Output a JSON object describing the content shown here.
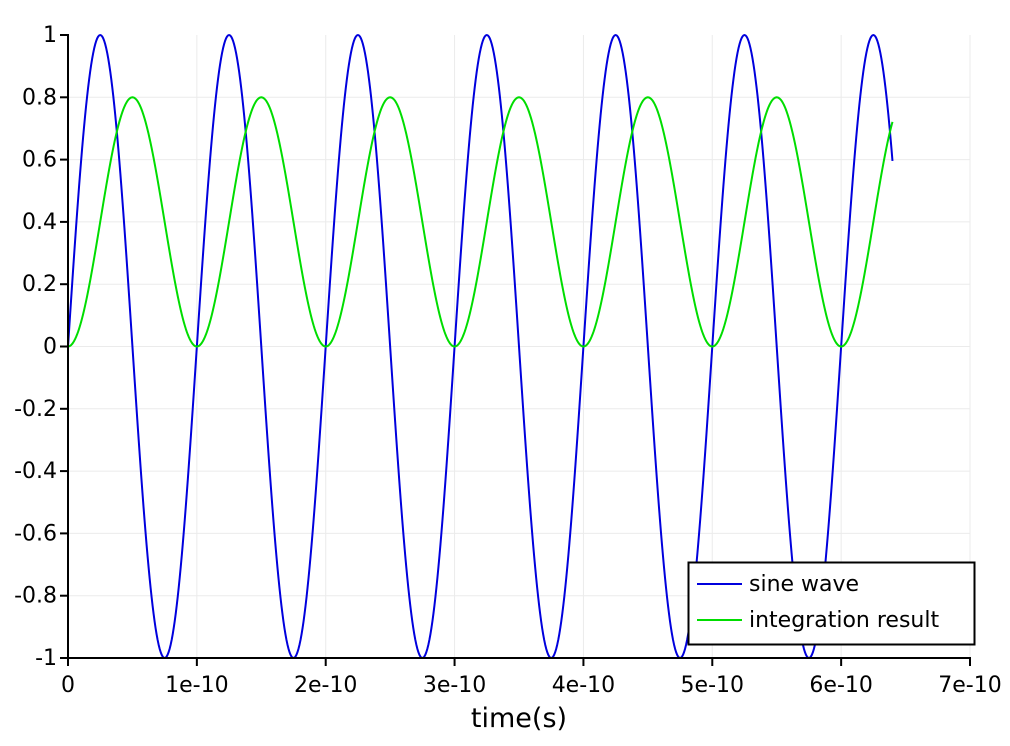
{
  "chart_data": {
    "type": "line",
    "title": "",
    "xlabel": "time(s)",
    "ylabel": "",
    "xlim": [
      0,
      7e-10
    ],
    "ylim": [
      -1,
      1
    ],
    "grid": true,
    "grid_color": "#ebebeb",
    "axis_color": "#000000",
    "background_color": "#ffffff",
    "x_ticks": [
      {
        "value": 0,
        "label": "0"
      },
      {
        "value": 1e-10,
        "label": "1e-10"
      },
      {
        "value": 2e-10,
        "label": "2e-10"
      },
      {
        "value": 3e-10,
        "label": "3e-10"
      },
      {
        "value": 4e-10,
        "label": "4e-10"
      },
      {
        "value": 5e-10,
        "label": "5e-10"
      },
      {
        "value": 6e-10,
        "label": "6e-10"
      },
      {
        "value": 7e-10,
        "label": "7e-10"
      }
    ],
    "y_ticks": [
      {
        "value": 1,
        "label": "1"
      },
      {
        "value": 0.8,
        "label": "0.8"
      },
      {
        "value": 0.6,
        "label": "0.6"
      },
      {
        "value": 0.4,
        "label": "0.4"
      },
      {
        "value": 0.2,
        "label": "0.2"
      },
      {
        "value": 0,
        "label": "0"
      },
      {
        "value": -0.2,
        "label": "-0.2"
      },
      {
        "value": -0.4,
        "label": "-0.4"
      },
      {
        "value": -0.6,
        "label": "-0.6"
      },
      {
        "value": -0.8,
        "label": "-0.8"
      },
      {
        "value": -1,
        "label": "-1"
      }
    ],
    "series": [
      {
        "name": "sine wave",
        "color": "#0000dd",
        "line_width": 2,
        "formula": "sin(2*pi*t/T)",
        "offset": 0,
        "amplitude": 1,
        "period": 1e-10,
        "phase_deg": 0,
        "t_start": 0,
        "t_end": 6.4e-10
      },
      {
        "name": "integration result",
        "color": "#00dd00",
        "line_width": 2,
        "formula": "0.4*(1-cos(2*pi*t/T))",
        "offset": 0.4,
        "amplitude": 0.4,
        "period": 1e-10,
        "phase_deg": -90,
        "t_start": 0,
        "t_end": 6.4e-10
      }
    ],
    "legend": {
      "position": "lower-right",
      "entries": [
        "sine wave",
        "integration result"
      ]
    }
  }
}
